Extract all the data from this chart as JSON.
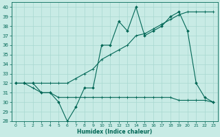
{
  "xlabel": "Humidex (Indice chaleur)",
  "bg_color": "#c8ebe5",
  "grid_color": "#a8d8d0",
  "line_color": "#006655",
  "xlim": [
    -0.5,
    23.5
  ],
  "ylim": [
    28,
    40.5
  ],
  "yticks": [
    28,
    29,
    30,
    31,
    32,
    33,
    34,
    35,
    36,
    37,
    38,
    39,
    40
  ],
  "xticks": [
    0,
    1,
    2,
    3,
    4,
    5,
    6,
    7,
    8,
    9,
    10,
    11,
    12,
    13,
    14,
    15,
    16,
    17,
    18,
    19,
    20,
    21,
    22,
    23
  ],
  "series1_x": [
    0,
    1,
    2,
    3,
    4,
    5,
    6,
    7,
    8,
    9,
    10,
    11,
    12,
    13,
    14,
    15,
    16,
    17,
    18,
    19,
    20,
    21,
    22,
    23
  ],
  "series1_y": [
    32,
    32,
    32,
    31,
    31,
    30,
    28,
    29.5,
    31.5,
    31.5,
    36,
    36,
    38.5,
    37.5,
    40,
    37,
    37.5,
    38,
    39,
    39.5,
    37.5,
    32,
    30.5,
    30
  ],
  "series2_x": [
    0,
    1,
    2,
    3,
    4,
    5,
    6,
    7,
    8,
    9,
    10,
    11,
    12,
    13,
    14,
    15,
    16,
    17,
    18,
    19,
    20,
    21,
    22,
    23
  ],
  "series2_y": [
    32,
    32,
    31.5,
    31,
    31,
    30.5,
    30.5,
    30.5,
    30.5,
    30.5,
    30.5,
    30.5,
    30.5,
    30.5,
    30.5,
    30.5,
    30.5,
    30.5,
    30.5,
    30.2,
    30.2,
    30.2,
    30.2,
    30
  ],
  "series3_x": [
    0,
    1,
    2,
    3,
    4,
    5,
    6,
    7,
    8,
    9,
    10,
    11,
    12,
    13,
    14,
    15,
    16,
    17,
    18,
    19,
    20,
    21,
    22,
    23
  ],
  "series3_y": [
    32,
    32,
    32,
    32,
    32,
    32,
    32,
    32.5,
    33,
    33.5,
    34.5,
    35,
    35.5,
    36,
    37,
    37.2,
    37.7,
    38.2,
    38.7,
    39.2,
    39.5,
    39.5,
    39.5,
    39.5
  ],
  "series2_marker_x": [
    0,
    1,
    2,
    3,
    4,
    5,
    7,
    8
  ],
  "series2_marker_y": [
    32,
    32,
    31.5,
    31,
    31,
    30.5,
    30.5,
    30.5
  ]
}
